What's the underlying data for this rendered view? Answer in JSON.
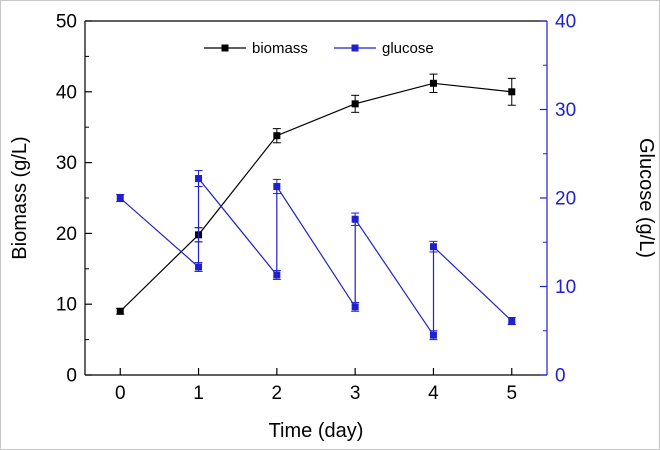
{
  "chart_data": {
    "type": "line",
    "title": "",
    "xlabel": "Time (day)",
    "ylabel_left": "Biomass (g/L)",
    "ylabel_right": "Glucose (g/L)",
    "xlim": [
      -0.45,
      5.45
    ],
    "x_ticks": [
      0,
      1,
      2,
      3,
      4,
      5
    ],
    "left_axis": {
      "lim": [
        0,
        50
      ],
      "major_ticks": [
        0,
        10,
        20,
        30,
        40,
        50
      ],
      "minor_step": 5,
      "color": "#000000"
    },
    "right_axis": {
      "lim": [
        0,
        40
      ],
      "major_ticks": [
        0,
        10,
        20,
        30,
        40
      ],
      "minor_step": 5,
      "color": "#2020cd"
    },
    "grid": false,
    "legend_position": "top-center",
    "series": [
      {
        "name": "biomass",
        "axis": "left",
        "color": "#000000",
        "marker": "square",
        "points": [
          {
            "x": 0,
            "y": 9.0,
            "err": 0.4
          },
          {
            "x": 1,
            "y": 19.8,
            "err": 1.0
          },
          {
            "x": 2,
            "y": 33.8,
            "err": 1.0
          },
          {
            "x": 3,
            "y": 38.3,
            "err": 1.2
          },
          {
            "x": 4,
            "y": 41.2,
            "err": 1.3
          },
          {
            "x": 5,
            "y": 40.0,
            "err": 1.9
          }
        ]
      },
      {
        "name": "glucose",
        "axis": "right",
        "color": "#2020cd",
        "marker": "square",
        "points": [
          {
            "x": 0,
            "y": 20.0,
            "err": 0.4
          },
          {
            "x": 1,
            "y": 12.2,
            "err": 0.5
          },
          {
            "x": 1,
            "y": 22.2,
            "err": 0.9
          },
          {
            "x": 2,
            "y": 11.3,
            "err": 0.5
          },
          {
            "x": 2,
            "y": 21.3,
            "err": 0.8
          },
          {
            "x": 3,
            "y": 7.7,
            "err": 0.5
          },
          {
            "x": 3,
            "y": 17.6,
            "err": 0.7
          },
          {
            "x": 4,
            "y": 4.5,
            "err": 0.5
          },
          {
            "x": 4,
            "y": 14.5,
            "err": 0.6
          },
          {
            "x": 5,
            "y": 6.1,
            "err": 0.4
          }
        ]
      }
    ]
  }
}
